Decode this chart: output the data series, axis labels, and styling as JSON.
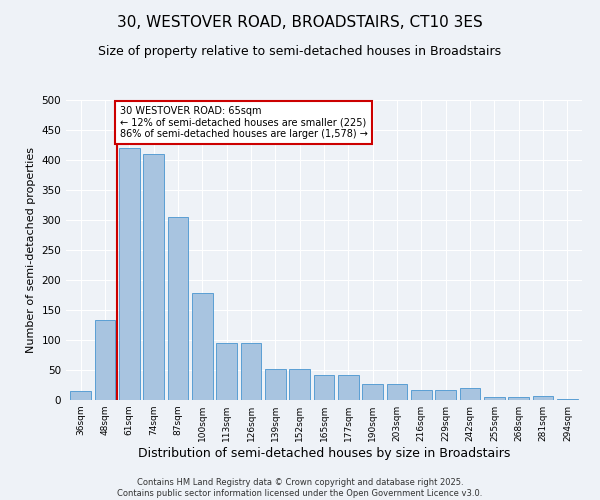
{
  "title": "30, WESTOVER ROAD, BROADSTAIRS, CT10 3ES",
  "subtitle": "Size of property relative to semi-detached houses in Broadstairs",
  "xlabel": "Distribution of semi-detached houses by size in Broadstairs",
  "ylabel": "Number of semi-detached properties",
  "categories": [
    "36sqm",
    "48sqm",
    "61sqm",
    "74sqm",
    "87sqm",
    "100sqm",
    "113sqm",
    "126sqm",
    "139sqm",
    "152sqm",
    "165sqm",
    "177sqm",
    "190sqm",
    "203sqm",
    "216sqm",
    "229sqm",
    "242sqm",
    "255sqm",
    "268sqm",
    "281sqm",
    "294sqm"
  ],
  "values": [
    15,
    133,
    420,
    410,
    305,
    178,
    95,
    95,
    52,
    52,
    42,
    42,
    27,
    27,
    17,
    17,
    20,
    5,
    5,
    7,
    1
  ],
  "bar_color": "#a8c4e0",
  "bar_edge_color": "#5a9fd4",
  "subject_line_color": "#cc0000",
  "annotation_title": "30 WESTOVER ROAD: 65sqm",
  "annotation_line1": "← 12% of semi-detached houses are smaller (225)",
  "annotation_line2": "86% of semi-detached houses are larger (1,578) →",
  "annotation_box_color": "#ffffff",
  "annotation_box_edge": "#cc0000",
  "ylim": [
    0,
    500
  ],
  "yticks": [
    0,
    50,
    100,
    150,
    200,
    250,
    300,
    350,
    400,
    450,
    500
  ],
  "background_color": "#eef2f7",
  "footnote": "Contains HM Land Registry data © Crown copyright and database right 2025.\nContains public sector information licensed under the Open Government Licence v3.0.",
  "title_fontsize": 11,
  "subtitle_fontsize": 9,
  "xlabel_fontsize": 9,
  "ylabel_fontsize": 8
}
